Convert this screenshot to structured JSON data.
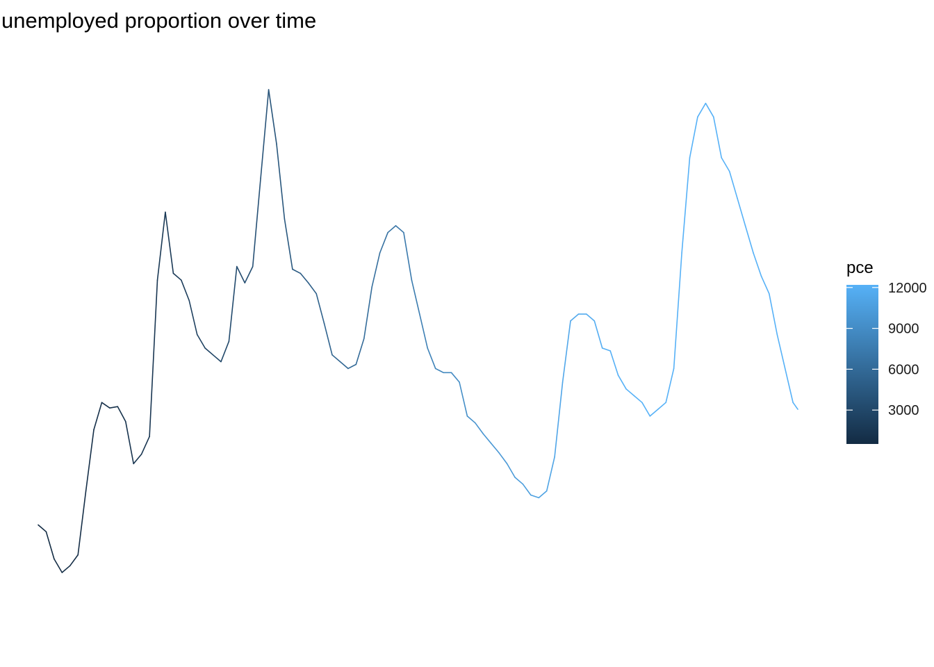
{
  "chart_data": {
    "type": "line",
    "title": "unemployed proportion over time",
    "xlabel": "",
    "ylabel": "",
    "axes_visible": false,
    "grid": false,
    "color_scale": {
      "title": "pce",
      "min": 507,
      "max": 12194,
      "low_color": "#132b43",
      "high_color": "#56b1f7",
      "ticks": [
        3000,
        6000,
        9000,
        12000
      ],
      "tick_labels": [
        "3000",
        "6000",
        "9000",
        "12000"
      ],
      "placement": "right"
    },
    "xlim": [
      1967.5,
      2015.3
    ],
    "ylim": [
      0.0067,
      0.0491
    ],
    "series": [
      {
        "x": [
          1967.5,
          1968.0,
          1968.5,
          1969.0,
          1969.5,
          1970.0,
          1970.5,
          1971.0,
          1971.5,
          1972.0,
          1972.5,
          1973.0,
          1973.5,
          1974.0,
          1974.5,
          1975.0,
          1975.5,
          1976.0,
          1976.5,
          1977.0,
          1977.5,
          1978.0,
          1978.5,
          1979.0,
          1979.5,
          1980.0,
          1980.5,
          1981.0,
          1981.5,
          1982.0,
          1982.5,
          1983.0,
          1983.5,
          1984.0,
          1984.5,
          1985.0,
          1985.5,
          1986.0,
          1986.5,
          1987.0,
          1987.5,
          1988.0,
          1988.5,
          1989.0,
          1989.5,
          1990.0,
          1990.5,
          1991.0,
          1991.5,
          1992.0,
          1992.5,
          1993.0,
          1993.5,
          1994.0,
          1994.5,
          1995.0,
          1995.5,
          1996.0,
          1996.5,
          1997.0,
          1997.5,
          1998.0,
          1998.5,
          1999.0,
          1999.5,
          2000.0,
          2000.5,
          2001.0,
          2001.5,
          2002.0,
          2002.5,
          2003.0,
          2003.5,
          2004.0,
          2004.5,
          2005.0,
          2005.5,
          2006.0,
          2006.5,
          2007.0,
          2007.5,
          2008.0,
          2008.5,
          2009.0,
          2009.5,
          2010.0,
          2010.5,
          2011.0,
          2011.5,
          2012.0,
          2012.5,
          2013.0,
          2013.5,
          2014.0,
          2014.5,
          2015.0,
          2015.3
        ],
        "y": [
          0.015,
          0.0145,
          0.0125,
          0.0115,
          0.012,
          0.0128,
          0.0175,
          0.022,
          0.024,
          0.0236,
          0.0237,
          0.0226,
          0.0195,
          0.0202,
          0.0215,
          0.033,
          0.038,
          0.0335,
          0.033,
          0.0315,
          0.029,
          0.028,
          0.0275,
          0.027,
          0.0285,
          0.034,
          0.0328,
          0.034,
          0.0405,
          0.047,
          0.043,
          0.0375,
          0.0338,
          0.0335,
          0.0328,
          0.032,
          0.0298,
          0.0275,
          0.027,
          0.0265,
          0.0268,
          0.0287,
          0.0325,
          0.035,
          0.0365,
          0.037,
          0.0365,
          0.033,
          0.0305,
          0.028,
          0.0265,
          0.0262,
          0.0262,
          0.0255,
          0.023,
          0.0225,
          0.0217,
          0.021,
          0.0203,
          0.0195,
          0.0185,
          0.018,
          0.0172,
          0.017,
          0.0175,
          0.02,
          0.0255,
          0.03,
          0.0305,
          0.0305,
          0.03,
          0.028,
          0.0278,
          0.026,
          0.025,
          0.0245,
          0.024,
          0.023,
          0.0235,
          0.024,
          0.0265,
          0.035,
          0.042,
          0.045,
          0.046,
          0.045,
          0.042,
          0.041,
          0.039,
          0.037,
          0.035,
          0.0333,
          0.032,
          0.029,
          0.0265,
          0.024,
          0.0235
        ],
        "pce": [
          507,
          560,
          610,
          660,
          700,
          740,
          800,
          860,
          920,
          1000,
          1070,
          1150,
          1240,
          1340,
          1440,
          1560,
          1680,
          1820,
          1980,
          2150,
          2330,
          2520,
          2720,
          2920,
          3110,
          3300,
          3500,
          3680,
          3840,
          3990,
          4150,
          4310,
          4490,
          4690,
          4900,
          5090,
          5280,
          5450,
          5620,
          5780,
          5950,
          6140,
          6330,
          6530,
          6730,
          6950,
          7170,
          7420,
          7680,
          7950,
          8200,
          8450,
          8710,
          8960,
          9240,
          9530,
          9800,
          9850,
          9960,
          10080,
          10260,
          10430,
          10600,
          10790,
          10950,
          11120,
          11260,
          11420,
          11580,
          11700,
          11820,
          11940,
          12060,
          12194,
          12194,
          12194,
          12194,
          12194,
          12194,
          12194,
          12194,
          12194,
          12194,
          12194,
          12194,
          12194,
          12194,
          12194,
          12194,
          12194,
          12194,
          12194,
          12194,
          12194,
          12194,
          12194,
          12194
        ]
      }
    ]
  }
}
